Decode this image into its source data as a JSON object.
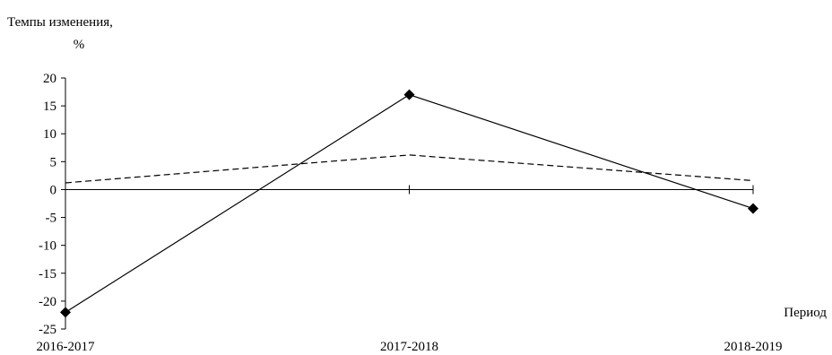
{
  "chart_data": {
    "type": "line",
    "ylabel_line1": "Темпы изменения,",
    "ylabel_line2": "%",
    "xlabel": "Период",
    "categories": [
      "2016-2017",
      "2017-2018",
      "2018-2019"
    ],
    "ylim": [
      -25,
      20
    ],
    "yticks": [
      20,
      15,
      10,
      5,
      0,
      -5,
      -10,
      -15,
      -20,
      -25
    ],
    "grid": false,
    "legend": false,
    "series": [
      {
        "style": "solid",
        "marker": "diamond",
        "color": "#000000",
        "values": [
          -22,
          17,
          -3.4
        ]
      },
      {
        "style": "dashed",
        "marker": "none",
        "color": "#000000",
        "values": [
          1.2,
          6.2,
          1.6
        ]
      }
    ]
  }
}
